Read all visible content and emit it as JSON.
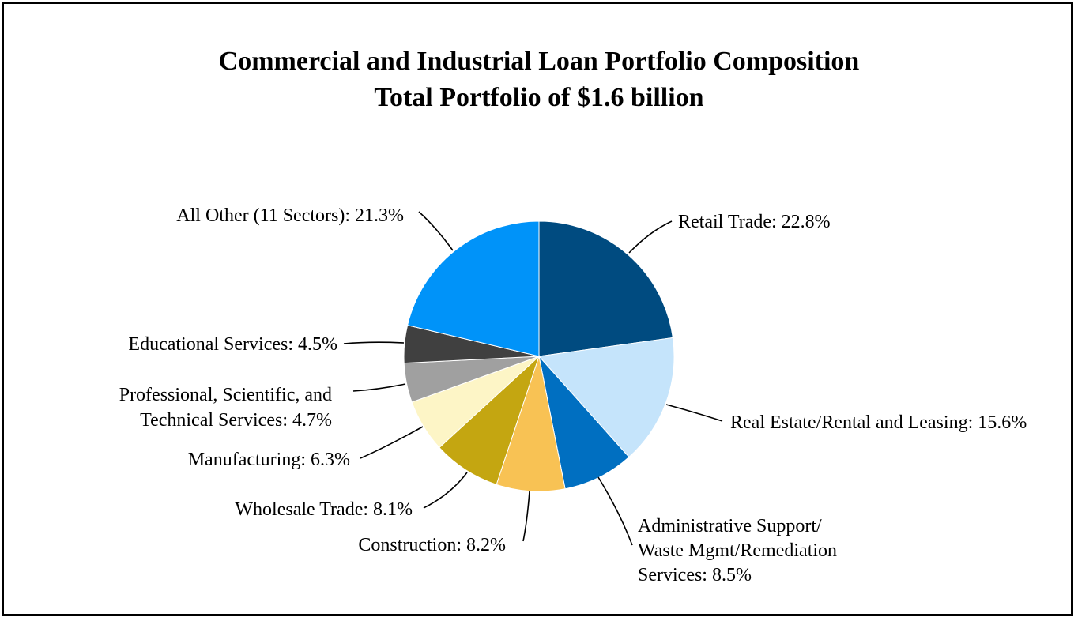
{
  "chart_data": {
    "type": "pie",
    "title": "Commercial and Industrial Loan Portfolio Composition",
    "subtitle": "Total Portfolio of $1.6 billion",
    "unit": "%",
    "slices": [
      {
        "name": "Retail Trade",
        "value": 22.8,
        "color": "#004B80",
        "label_lines": [
          "Retail Trade: 22.8%"
        ]
      },
      {
        "name": "Real Estate/Rental and Leasing",
        "value": 15.6,
        "color": "#C5E4FB",
        "label_lines": [
          "Real Estate/Rental and Leasing: 15.6%"
        ]
      },
      {
        "name": "Administrative Support/ Waste Mgmt/Remediation Services",
        "value": 8.5,
        "color": "#006FC1",
        "label_lines": [
          "Administrative Support/",
          "Waste Mgmt/Remediation",
          "Services: 8.5%"
        ]
      },
      {
        "name": "Construction",
        "value": 8.2,
        "color": "#F8C254",
        "label_lines": [
          "Construction: 8.2%"
        ]
      },
      {
        "name": "Wholesale Trade",
        "value": 8.1,
        "color": "#C4A611",
        "label_lines": [
          "Wholesale Trade: 8.1%"
        ]
      },
      {
        "name": "Manufacturing",
        "value": 6.3,
        "color": "#FDF5C6",
        "label_lines": [
          "Manufacturing: 6.3%"
        ]
      },
      {
        "name": "Professional, Scientific, and Technical Services",
        "value": 4.7,
        "color": "#A0A0A0",
        "label_lines": [
          "Professional, Scientific, and",
          "Technical Services: 4.7%"
        ]
      },
      {
        "name": "Educational Services",
        "value": 4.5,
        "color": "#404040",
        "label_lines": [
          "Educational Services: 4.5%"
        ]
      },
      {
        "name": "All Other (11 Sectors)",
        "value": 21.3,
        "color": "#0093F9",
        "label_lines": [
          "All Other (11 Sectors): 21.3%"
        ]
      }
    ],
    "start": "12 o'clock",
    "direction": "clockwise",
    "legend": "none",
    "labels": "outside with leader lines"
  }
}
